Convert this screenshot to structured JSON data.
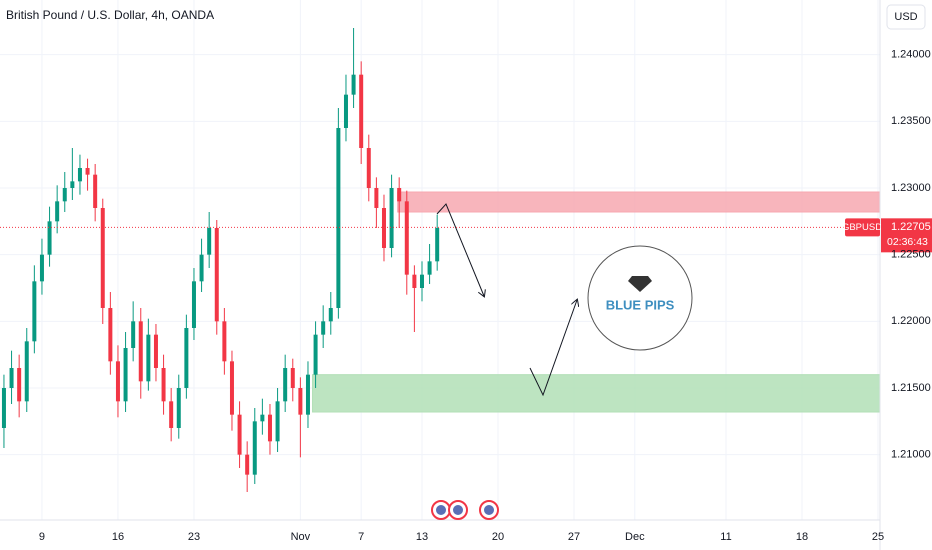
{
  "chart_data": {
    "type": "candlestick",
    "title": "British Pound / U.S. Dollar, 4h, OANDA",
    "currency": "USD",
    "symbol": "GBPUSD",
    "last_price": 1.22705,
    "countdown": "02:36:43",
    "logo": "BLUE PIPS",
    "up_color": "#089981",
    "down_color": "#f23645",
    "grid": true,
    "ylim": [
      1.2051,
      1.2441
    ],
    "yticks": [
      {
        "value": 1.21,
        "label": "1.21000"
      },
      {
        "value": 1.215,
        "label": "1.21500"
      },
      {
        "value": 1.22,
        "label": "1.22000"
      },
      {
        "value": 1.225,
        "label": "1.22500"
      },
      {
        "value": 1.23,
        "label": "1.23000"
      },
      {
        "value": 1.235,
        "label": "1.23500"
      },
      {
        "value": 1.24,
        "label": "1.24000"
      }
    ],
    "xlim": [
      -2.76,
      55.13
    ],
    "xticks": [
      {
        "value": 0,
        "label": "9"
      },
      {
        "value": 5,
        "label": "16"
      },
      {
        "value": 10,
        "label": "23"
      },
      {
        "value": 17,
        "label": "Nov"
      },
      {
        "value": 21,
        "label": "7"
      },
      {
        "value": 25,
        "label": "13"
      },
      {
        "value": 30,
        "label": "20"
      },
      {
        "value": 35,
        "label": "27"
      },
      {
        "value": 39,
        "label": "Dec"
      },
      {
        "value": 45,
        "label": "11"
      },
      {
        "value": 50,
        "label": "18"
      },
      {
        "value": 55,
        "label": "25"
      }
    ],
    "zones": [
      {
        "low": 1.2282,
        "high": 1.2297,
        "start": 23.4,
        "color": "#f7a8b0"
      },
      {
        "low": 1.2132,
        "high": 1.216,
        "start": 17.8,
        "color": "#b2dfb6"
      }
    ],
    "candles": {
      "x": [
        -2.5,
        -2,
        -1.5,
        -1,
        -0.5,
        0,
        0.5,
        1,
        1.5,
        2,
        2.5,
        3,
        3.5,
        4,
        4.5,
        5,
        5.5,
        6,
        6.5,
        7,
        7.5,
        8,
        8.5,
        9,
        9.5,
        10,
        10.5,
        11,
        11.5,
        12,
        12.5,
        13,
        13.5,
        14,
        14.5,
        15,
        15.5,
        16,
        16.5,
        17,
        17.5,
        18,
        18.5,
        19,
        19.5,
        20,
        20.5,
        21,
        21.5,
        22,
        22.5,
        23,
        23.5,
        24,
        24.5,
        25,
        25.5,
        26
      ],
      "open": [
        1.212,
        1.215,
        1.2165,
        1.214,
        1.2185,
        1.223,
        1.225,
        1.2275,
        1.229,
        1.23,
        1.2305,
        1.2315,
        1.231,
        1.2285,
        1.221,
        1.217,
        1.214,
        1.218,
        1.22,
        1.2155,
        1.219,
        1.2165,
        1.214,
        1.212,
        1.215,
        1.2195,
        1.223,
        1.225,
        1.227,
        1.22,
        1.217,
        1.213,
        1.21,
        1.2085,
        1.2125,
        1.213,
        1.211,
        1.214,
        1.2165,
        1.215,
        1.213,
        1.216,
        1.219,
        1.22,
        1.221,
        1.2345,
        1.237,
        1.2385,
        1.233,
        1.23,
        1.2285,
        1.2255,
        1.23,
        1.229,
        1.2235,
        1.2225,
        1.2235,
        1.2245
      ],
      "high": [
        1.216,
        1.2178,
        1.2175,
        1.2195,
        1.2242,
        1.2262,
        1.2286,
        1.2302,
        1.2312,
        1.233,
        1.2325,
        1.2322,
        1.2318,
        1.2292,
        1.2222,
        1.2182,
        1.2192,
        1.2215,
        1.221,
        1.2202,
        1.2198,
        1.2175,
        1.215,
        1.216,
        1.2205,
        1.224,
        1.2262,
        1.2282,
        1.2276,
        1.221,
        1.2178,
        1.214,
        1.211,
        1.2135,
        1.2142,
        1.2138,
        1.215,
        1.2175,
        1.2172,
        1.2158,
        1.217,
        1.22,
        1.2212,
        1.2222,
        1.236,
        1.2385,
        1.242,
        1.2395,
        1.234,
        1.2308,
        1.2295,
        1.231,
        1.2308,
        1.2298,
        1.2242,
        1.2245,
        1.2258,
        1.228
      ],
      "low": [
        1.2105,
        1.2138,
        1.2128,
        1.2132,
        1.2176,
        1.222,
        1.2241,
        1.2266,
        1.2282,
        1.2291,
        1.2295,
        1.2298,
        1.2275,
        1.2198,
        1.216,
        1.2128,
        1.2132,
        1.217,
        1.2142,
        1.2148,
        1.2155,
        1.213,
        1.211,
        1.2112,
        1.2142,
        1.2186,
        1.2222,
        1.224,
        1.219,
        1.216,
        1.2118,
        1.209,
        1.2072,
        1.2078,
        1.2115,
        1.21,
        1.2102,
        1.2132,
        1.214,
        1.2098,
        1.212,
        1.215,
        1.218,
        1.219,
        1.2202,
        1.2335,
        1.236,
        1.2318,
        1.229,
        1.227,
        1.2245,
        1.2248,
        1.227,
        1.222,
        1.2192,
        1.2215,
        1.2228,
        1.2238
      ],
      "close": [
        1.215,
        1.2165,
        1.214,
        1.2185,
        1.223,
        1.225,
        1.2275,
        1.229,
        1.23,
        1.2305,
        1.2315,
        1.231,
        1.2285,
        1.221,
        1.217,
        1.214,
        1.218,
        1.22,
        1.2155,
        1.219,
        1.2165,
        1.214,
        1.212,
        1.215,
        1.2195,
        1.223,
        1.225,
        1.227,
        1.22,
        1.217,
        1.213,
        1.21,
        1.2085,
        1.2125,
        1.213,
        1.211,
        1.214,
        1.2165,
        1.215,
        1.213,
        1.216,
        1.219,
        1.22,
        1.221,
        1.2345,
        1.237,
        1.2385,
        1.233,
        1.23,
        1.2285,
        1.2255,
        1.23,
        1.229,
        1.2235,
        1.2225,
        1.2235,
        1.2245,
        1.227
      ]
    }
  }
}
